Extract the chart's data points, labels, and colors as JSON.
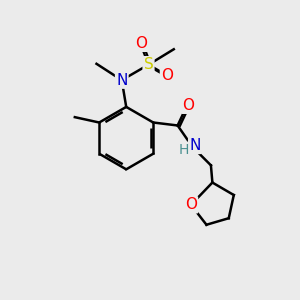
{
  "bg_color": "#ebebeb",
  "atom_colors": {
    "C": "#000000",
    "N": "#0000cc",
    "O": "#ff0000",
    "S": "#cccc00",
    "H": "#4a9090"
  },
  "bond_color": "#000000",
  "bond_width": 1.8,
  "font_size_atom": 11
}
